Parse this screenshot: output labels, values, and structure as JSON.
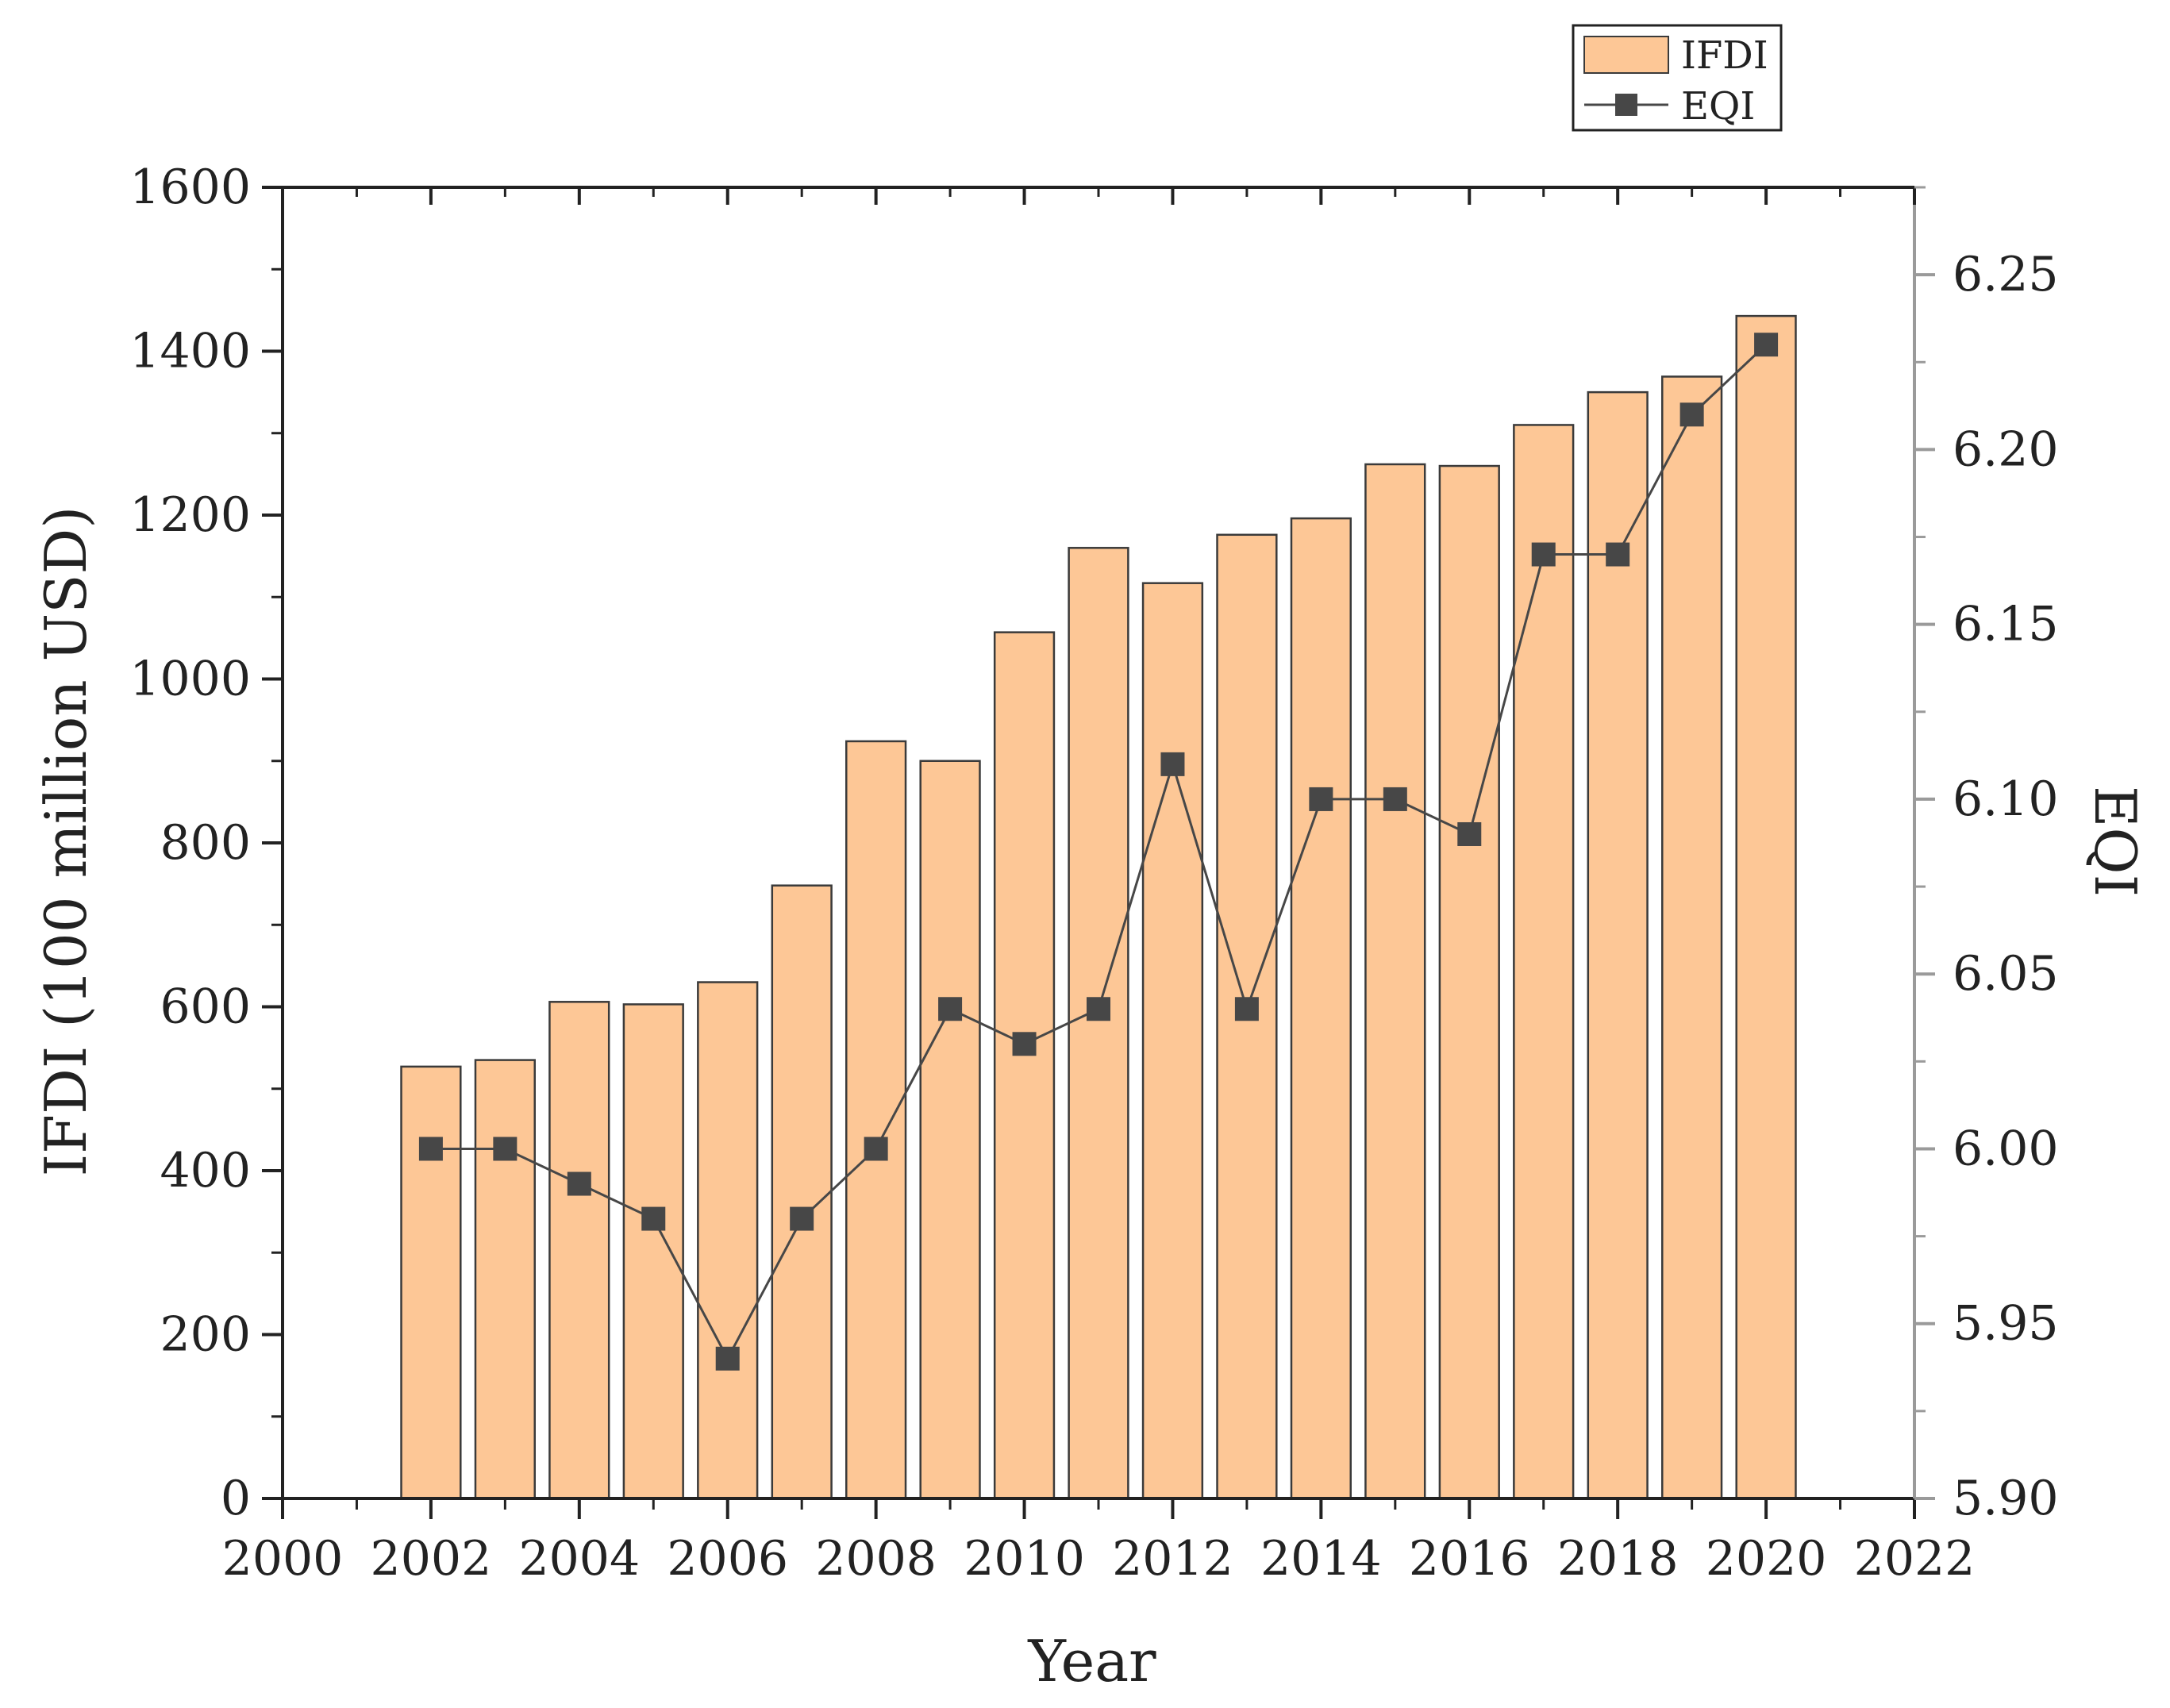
{
  "chart_data": {
    "type": "bar",
    "x": [
      2002,
      2003,
      2004,
      2005,
      2006,
      2007,
      2008,
      2009,
      2010,
      2011,
      2012,
      2013,
      2014,
      2015,
      2016,
      2017,
      2018,
      2019,
      2020
    ],
    "series": [
      {
        "name": "IFDI",
        "type": "bar",
        "axis": "left",
        "values": [
          527,
          535,
          606,
          603,
          630,
          748,
          924,
          900,
          1057,
          1160,
          1117,
          1176,
          1196,
          1262,
          1260,
          1310,
          1350,
          1369,
          1443
        ]
      },
      {
        "name": "EQI",
        "type": "line",
        "axis": "right",
        "values": [
          6.0,
          6.0,
          5.99,
          5.98,
          5.94,
          5.98,
          6.0,
          6.04,
          6.03,
          6.04,
          6.11,
          6.04,
          6.1,
          6.1,
          6.09,
          6.17,
          6.17,
          6.21,
          6.23
        ]
      }
    ],
    "xlabel": "Year",
    "ylabel": "IFDI (100 million USD)",
    "y2label": "EQI",
    "xlim": [
      2000,
      2022
    ],
    "ylim": [
      0,
      1600
    ],
    "y2lim": [
      5.9,
      6.275
    ],
    "xticks": [
      "2000",
      "2002",
      "2004",
      "2006",
      "2008",
      "2010",
      "2012",
      "2014",
      "2016",
      "2018",
      "2020",
      "2022"
    ],
    "yticks": [
      "0",
      "200",
      "400",
      "600",
      "800",
      "1000",
      "1200",
      "1400",
      "1600"
    ],
    "y2ticks": [
      "5.90",
      "5.95",
      "6.00",
      "6.05",
      "6.10",
      "6.15",
      "6.20",
      "6.25"
    ],
    "legend": {
      "position": "top-right",
      "entries": [
        "IFDI",
        "EQI"
      ]
    },
    "grid": false
  },
  "colors": {
    "bar_fill": "#fdc796",
    "bar_stroke": "#3a3a3a",
    "line": "#474747",
    "axis": "#222222"
  }
}
